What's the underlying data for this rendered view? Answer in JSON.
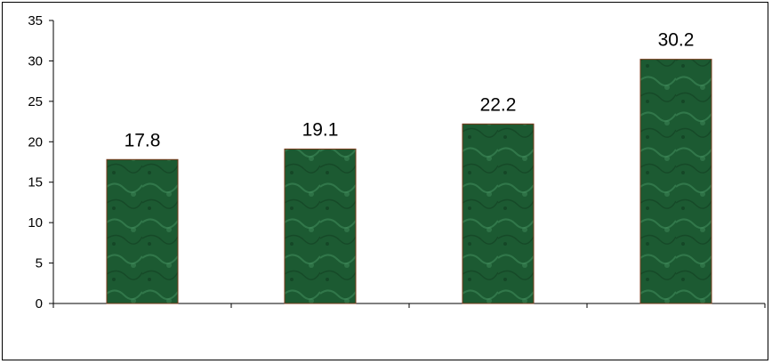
{
  "chart_data": {
    "type": "bar",
    "categories": [
      "",
      "",
      "",
      ""
    ],
    "values": [
      17.8,
      19.1,
      22.2,
      30.2
    ],
    "data_labels": [
      "17.8",
      "19.1",
      "22.2",
      "30.2"
    ],
    "ylim": [
      0,
      35
    ],
    "yticks": [
      "0",
      "5",
      "10",
      "15",
      "20",
      "25",
      "30",
      "35"
    ],
    "grid": false,
    "legend": "none",
    "colors": {
      "bar_fill": "#1c5a32",
      "bar_fill_light": "#3f8a5a",
      "bar_fill_dark": "#0f3a1e",
      "bar_outline": "#7a3a1a",
      "axis": "#000000"
    }
  }
}
